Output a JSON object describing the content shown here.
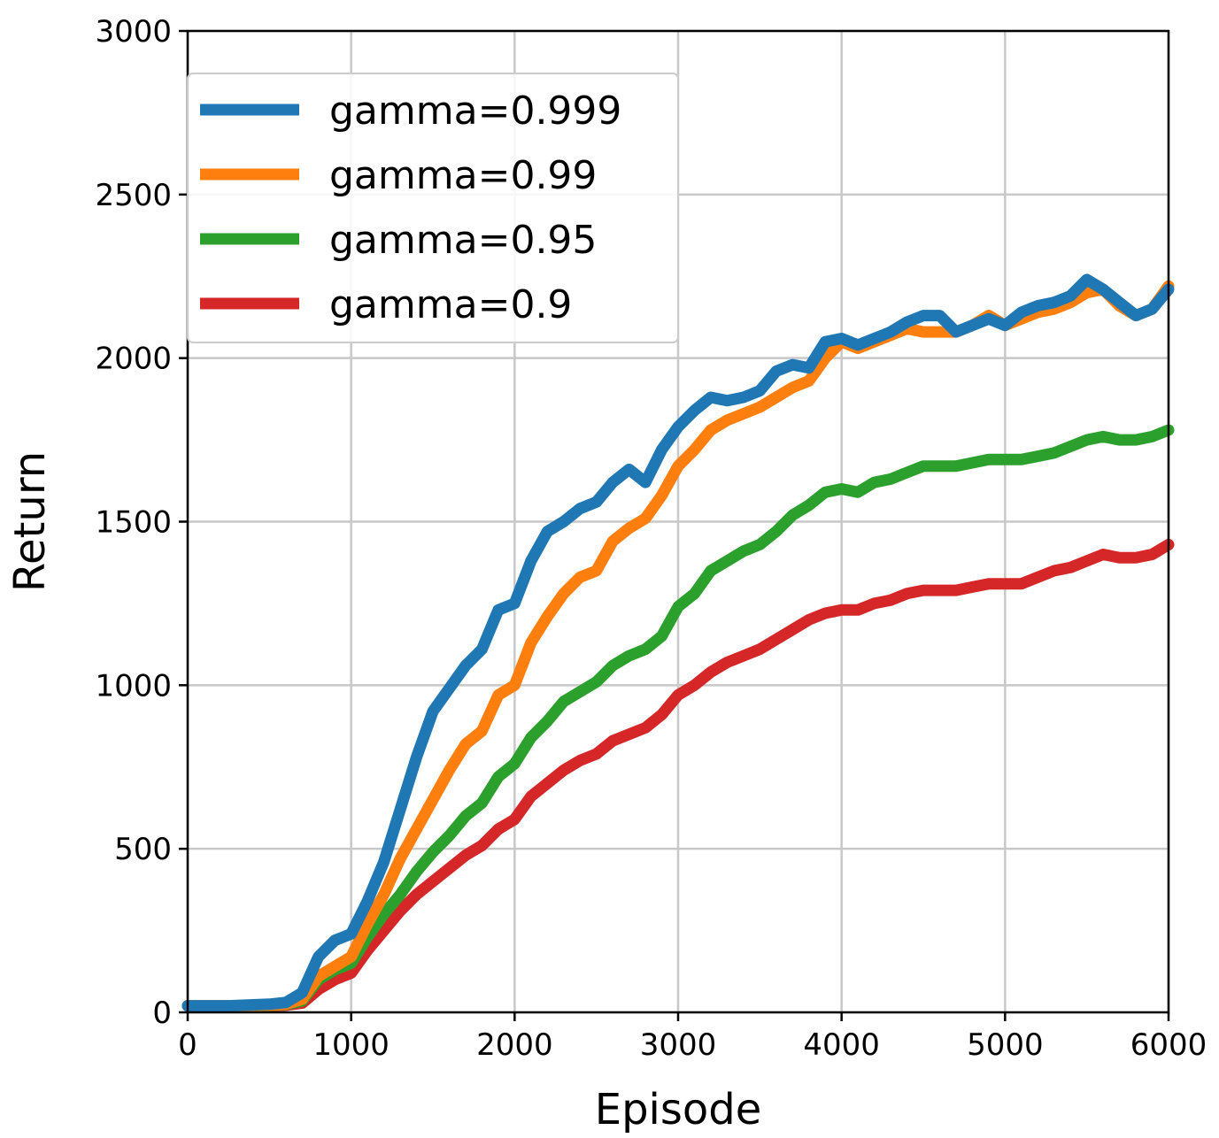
{
  "chart_data": {
    "type": "line",
    "xlabel": "Episode",
    "ylabel": "Return",
    "xlim": [
      0,
      6000
    ],
    "ylim": [
      0,
      3000
    ],
    "xticks": [
      0,
      1000,
      2000,
      3000,
      4000,
      5000,
      6000
    ],
    "yticks": [
      0,
      500,
      1000,
      1500,
      2000,
      2500,
      3000
    ],
    "grid": true,
    "legend_position": "upper-left",
    "x": [
      0,
      250,
      500,
      600,
      700,
      800,
      900,
      1000,
      1100,
      1200,
      1300,
      1400,
      1500,
      1600,
      1700,
      1800,
      1900,
      2000,
      2100,
      2200,
      2300,
      2400,
      2500,
      2600,
      2700,
      2800,
      2900,
      3000,
      3100,
      3200,
      3300,
      3400,
      3500,
      3600,
      3700,
      3800,
      3900,
      4000,
      4100,
      4200,
      4300,
      4400,
      4500,
      4600,
      4700,
      4800,
      4900,
      5000,
      5100,
      5200,
      5300,
      5400,
      5500,
      5600,
      5700,
      5800,
      5900,
      6000
    ],
    "series": [
      {
        "name": "gamma=0.999",
        "color": "#1f77b4",
        "values": [
          20,
          20,
          25,
          30,
          60,
          170,
          220,
          240,
          340,
          460,
          620,
          780,
          920,
          990,
          1060,
          1110,
          1230,
          1250,
          1380,
          1470,
          1500,
          1540,
          1560,
          1620,
          1660,
          1620,
          1720,
          1790,
          1840,
          1880,
          1870,
          1880,
          1900,
          1960,
          1980,
          1970,
          2050,
          2060,
          2040,
          2060,
          2080,
          2110,
          2130,
          2130,
          2080,
          2100,
          2120,
          2100,
          2140,
          2160,
          2170,
          2190,
          2240,
          2210,
          2170,
          2130,
          2150,
          2210
        ]
      },
      {
        "name": "gamma=0.99",
        "color": "#ff7f0e",
        "values": [
          20,
          20,
          22,
          25,
          40,
          110,
          140,
          170,
          270,
          360,
          470,
          560,
          650,
          740,
          820,
          860,
          970,
          1000,
          1130,
          1210,
          1280,
          1330,
          1350,
          1440,
          1480,
          1510,
          1580,
          1670,
          1720,
          1780,
          1810,
          1830,
          1850,
          1880,
          1910,
          1930,
          2000,
          2050,
          2030,
          2050,
          2070,
          2090,
          2080,
          2080,
          2080,
          2100,
          2130,
          2100,
          2120,
          2140,
          2150,
          2170,
          2200,
          2210,
          2160,
          2130,
          2150,
          2220
        ]
      },
      {
        "name": "gamma=0.95",
        "color": "#2ca02c",
        "values": [
          20,
          20,
          21,
          24,
          35,
          100,
          130,
          150,
          230,
          300,
          360,
          430,
          490,
          540,
          600,
          640,
          720,
          760,
          840,
          890,
          950,
          980,
          1010,
          1060,
          1090,
          1110,
          1150,
          1240,
          1280,
          1350,
          1380,
          1410,
          1430,
          1470,
          1520,
          1550,
          1590,
          1600,
          1590,
          1620,
          1630,
          1650,
          1670,
          1670,
          1670,
          1680,
          1690,
          1690,
          1690,
          1700,
          1710,
          1730,
          1750,
          1760,
          1750,
          1750,
          1760,
          1780
        ]
      },
      {
        "name": "gamma=0.9",
        "color": "#d62728",
        "values": [
          20,
          20,
          20,
          22,
          28,
          70,
          100,
          120,
          190,
          250,
          310,
          360,
          400,
          440,
          480,
          510,
          560,
          590,
          660,
          700,
          740,
          770,
          790,
          830,
          850,
          870,
          910,
          970,
          1000,
          1040,
          1070,
          1090,
          1110,
          1140,
          1170,
          1200,
          1220,
          1230,
          1230,
          1250,
          1260,
          1280,
          1290,
          1290,
          1290,
          1300,
          1310,
          1310,
          1310,
          1330,
          1350,
          1360,
          1380,
          1400,
          1390,
          1390,
          1400,
          1430
        ]
      }
    ]
  }
}
